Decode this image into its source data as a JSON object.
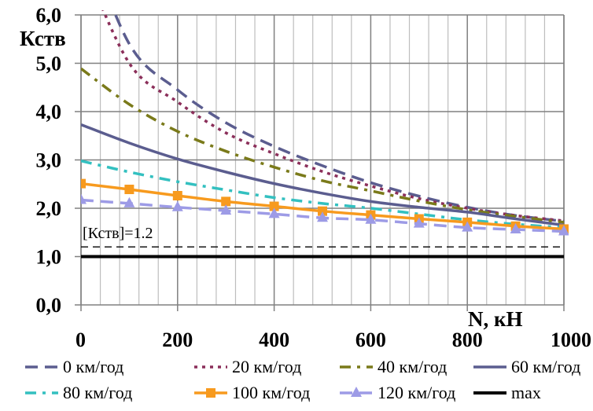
{
  "chart_data": {
    "type": "line",
    "title": "",
    "xlabel": "N, кН",
    "ylabel": "Кств",
    "xlim": [
      0,
      1000
    ],
    "ylim": [
      0,
      6
    ],
    "x_ticks": [
      "0",
      "200",
      "400",
      "600",
      "800",
      "1000"
    ],
    "x_tick_values": [
      0,
      200,
      400,
      600,
      800,
      1000
    ],
    "x_minor_step": 40,
    "y_ticks": [
      "0,0",
      "1,0",
      "2,0",
      "3,0",
      "4,0",
      "5,0",
      "6,0"
    ],
    "y_tick_values": [
      0,
      1,
      2,
      3,
      4,
      5,
      6
    ],
    "grid": true,
    "legend_position": "bottom",
    "annotation": {
      "text": "[Кств]=1.2",
      "y": 1.2
    },
    "x": [
      0,
      100,
      200,
      300,
      400,
      500,
      600,
      700,
      800,
      900,
      1000
    ],
    "series": [
      {
        "name": "0 км/год",
        "color": "#5B5D8F",
        "style": "longdash",
        "marker": "none",
        "values": [
          7.9,
          5.4,
          4.45,
          3.77,
          3.28,
          2.88,
          2.53,
          2.25,
          2.02,
          1.85,
          1.73
        ]
      },
      {
        "name": "20 км/год",
        "color": "#8B2F5A",
        "style": "dot",
        "marker": "none",
        "values": [
          7.2,
          5.0,
          4.2,
          3.56,
          3.13,
          2.76,
          2.46,
          2.2,
          2.0,
          1.85,
          1.74
        ]
      },
      {
        "name": "40 км/год",
        "color": "#7A7A1A",
        "style": "dashdot",
        "marker": "none",
        "values": [
          4.89,
          4.15,
          3.59,
          3.18,
          2.85,
          2.57,
          2.36,
          2.15,
          1.97,
          1.83,
          1.71
        ]
      },
      {
        "name": "60 км/год",
        "color": "#5B5D8F",
        "style": "solid",
        "marker": "none",
        "values": [
          3.73,
          3.35,
          3.02,
          2.75,
          2.51,
          2.31,
          2.14,
          2.02,
          1.92,
          1.78,
          1.65
        ]
      },
      {
        "name": "80 км/год",
        "color": "#33C0C0",
        "style": "dashdot",
        "marker": "none",
        "values": [
          2.98,
          2.75,
          2.55,
          2.38,
          2.22,
          2.1,
          2.0,
          1.88,
          1.76,
          1.67,
          1.6
        ]
      },
      {
        "name": "100 км/год",
        "color": "#F79A1E",
        "style": "solid",
        "marker": "square",
        "values": [
          2.51,
          2.39,
          2.26,
          2.14,
          2.04,
          1.94,
          1.86,
          1.78,
          1.71,
          1.63,
          1.57
        ]
      },
      {
        "name": "120 км/год",
        "color": "#9D9BE6",
        "style": "longdash",
        "marker": "triangle",
        "values": [
          2.17,
          2.1,
          2.02,
          1.95,
          1.88,
          1.8,
          1.76,
          1.68,
          1.6,
          1.56,
          1.52
        ]
      },
      {
        "name": "max",
        "color": "#000000",
        "style": "thick",
        "marker": "none",
        "values": [
          1,
          1,
          1,
          1,
          1,
          1,
          1,
          1,
          1,
          1,
          1
        ]
      }
    ]
  }
}
